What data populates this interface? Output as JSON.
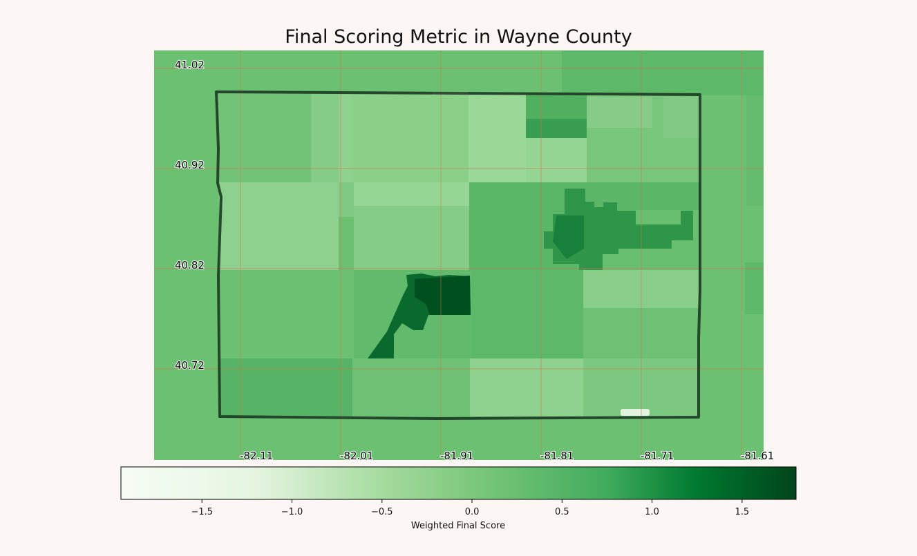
{
  "title": "Final Scoring Metric in Wayne County",
  "map": {
    "lat_labels": [
      "41.02",
      "40.92",
      "40.82",
      "40.72"
    ],
    "lon_labels": [
      "-82.11",
      "-82.01",
      "-81.91",
      "-81.81",
      "-81.71",
      "-81.61"
    ],
    "grid_color": "#e06a4a",
    "boundary_color": "#1c3a22"
  },
  "colorbar": {
    "label": "Weighted Final Score",
    "colormap": "Greens",
    "ticks": [
      -1.5,
      -1.0,
      -0.5,
      0.0,
      0.5,
      1.0,
      1.5
    ],
    "tick_labels": [
      "−1.5",
      "−1.0",
      "−0.5",
      "0.0",
      "0.5",
      "1.0",
      "1.5"
    ],
    "range": [
      -1.95,
      1.8
    ]
  },
  "colors": {
    "background": "#fcf7f4",
    "stop_0": "#f7fcf5",
    "stop_1": "#c7e9c0",
    "stop_2": "#74c476",
    "stop_3": "#238b45",
    "stop_4": "#006d2c",
    "stop_5": "#00441b"
  }
}
